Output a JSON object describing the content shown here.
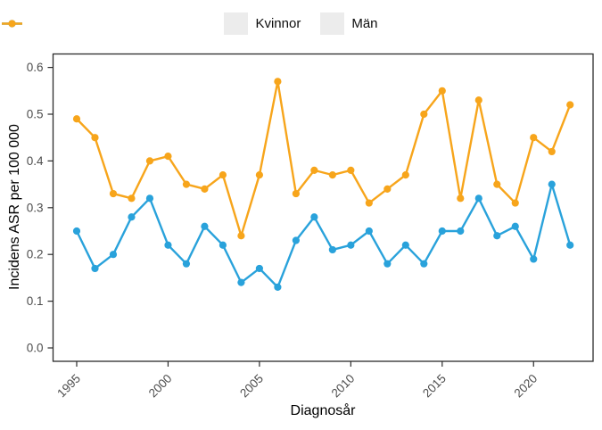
{
  "chart_data": {
    "type": "line",
    "title": "",
    "xlabel": "Diagnosår",
    "ylabel": "Incidens ASR per 100 000",
    "x": [
      1995,
      1996,
      1997,
      1998,
      1999,
      2000,
      2001,
      2002,
      2003,
      2004,
      2005,
      2006,
      2007,
      2008,
      2009,
      2010,
      2011,
      2012,
      2013,
      2014,
      2015,
      2016,
      2017,
      2018,
      2019,
      2020,
      2021,
      2022
    ],
    "series": [
      {
        "name": "Kvinnor",
        "color": "#29A2DB",
        "values": [
          0.25,
          0.17,
          0.2,
          0.28,
          0.32,
          0.22,
          0.18,
          0.26,
          0.22,
          0.14,
          0.17,
          0.13,
          0.23,
          0.28,
          0.21,
          0.22,
          0.25,
          0.18,
          0.22,
          0.18,
          0.25,
          0.25,
          0.32,
          0.24,
          0.26,
          0.19,
          0.35,
          0.22
        ]
      },
      {
        "name": "Män",
        "color": "#F7A51B",
        "values": [
          0.49,
          0.45,
          0.33,
          0.32,
          0.4,
          0.41,
          0.35,
          0.34,
          0.37,
          0.24,
          0.37,
          0.57,
          0.33,
          0.38,
          0.37,
          0.38,
          0.31,
          0.34,
          0.37,
          0.5,
          0.55,
          0.32,
          0.53,
          0.35,
          0.31,
          0.45,
          0.42,
          0.52
        ]
      }
    ],
    "ylim": [
      0,
      0.6
    ],
    "yticks": [
      0.0,
      0.1,
      0.2,
      0.3,
      0.4,
      0.5,
      0.6
    ],
    "ytick_labels": [
      "0.0",
      "0.1",
      "0.2",
      "0.3",
      "0.4",
      "0.5",
      "0.6"
    ],
    "xticks": [
      1995,
      2000,
      2005,
      2010,
      2015,
      2020
    ],
    "grid": false,
    "legend_position": "top",
    "panel_border_color": "#2b2b2b",
    "tick_label_color": "#4d4d4d",
    "background": "#ffffff"
  }
}
